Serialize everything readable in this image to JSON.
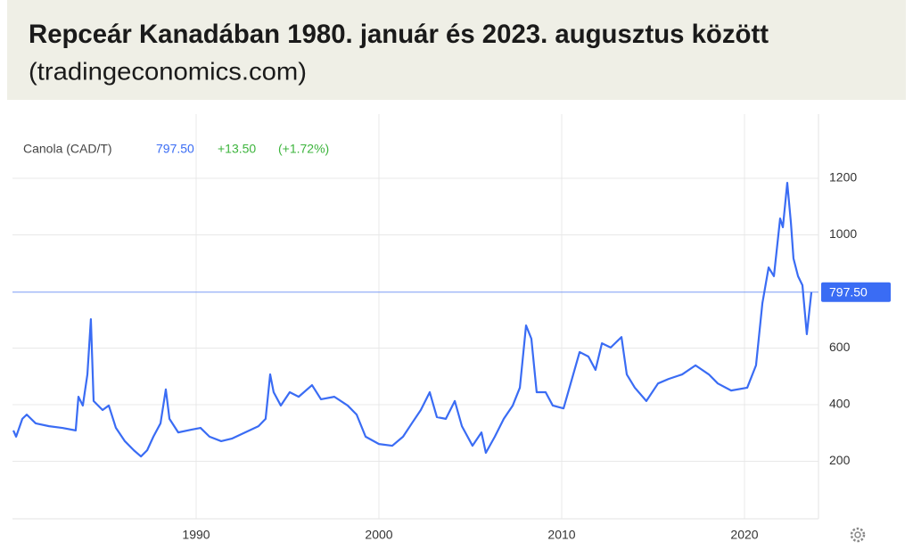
{
  "chart_data": {
    "type": "line",
    "title": "Repceár Kanadában 1980. január és 2023. augusztus között",
    "subtitle": "(tradingeconomics.com)",
    "series_label": "Canola (CAD/T)",
    "change": "+13.50",
    "change_pct": "(+1.72%)",
    "price_line": {
      "value": 797.5,
      "label": "797.50"
    },
    "xlim": [
      1980,
      2024
    ],
    "xticks": [
      1990,
      2000,
      2010,
      2020
    ],
    "ylim": [
      0,
      1400
    ],
    "yticks": [
      200,
      400,
      600,
      1000,
      1200
    ],
    "grid": true,
    "series": [
      {
        "name": "Canola",
        "color": "#3a6cf4",
        "x": [
          1980.0,
          1980.15,
          1980.49,
          1980.73,
          1981.22,
          1981.95,
          1982.68,
          1983.41,
          1983.56,
          1983.8,
          1984.05,
          1984.24,
          1984.39,
          1984.88,
          1985.22,
          1985.61,
          1986.1,
          1986.59,
          1986.98,
          1987.32,
          1987.66,
          1988.05,
          1988.34,
          1988.54,
          1989.02,
          1989.76,
          1990.24,
          1990.73,
          1991.37,
          1991.95,
          1992.68,
          1993.41,
          1993.8,
          1994.05,
          1994.24,
          1994.63,
          1995.12,
          1995.61,
          1996.34,
          1996.83,
          1997.56,
          1998.29,
          1998.78,
          1999.27,
          2000.0,
          2000.73,
          2001.32,
          2001.8,
          2002.29,
          2002.78,
          2003.17,
          2003.66,
          2004.15,
          2004.54,
          2005.12,
          2005.61,
          2005.85,
          2006.34,
          2006.83,
          2007.32,
          2007.71,
          2008.05,
          2008.34,
          2008.63,
          2009.12,
          2009.51,
          2010.1,
          2010.49,
          2010.98,
          2011.46,
          2011.85,
          2012.2,
          2012.68,
          2013.27,
          2013.56,
          2014.0,
          2014.63,
          2015.27,
          2015.85,
          2016.59,
          2017.32,
          2018.05,
          2018.54,
          2019.27,
          2020.15,
          2020.63,
          2020.98,
          2021.32,
          2021.61,
          2021.95,
          2022.1,
          2022.34,
          2022.54,
          2022.68,
          2022.93,
          2023.17,
          2023.41,
          2023.66
        ],
        "values": [
          309,
          287,
          350,
          365,
          334,
          324,
          318,
          309,
          428,
          397,
          507,
          702,
          413,
          381,
          397,
          318,
          271,
          239,
          217,
          239,
          287,
          334,
          454,
          350,
          302,
          312,
          318,
          287,
          271,
          280,
          302,
          324,
          350,
          507,
          444,
          397,
          444,
          428,
          469,
          419,
          428,
          397,
          365,
          287,
          261,
          255,
          287,
          334,
          381,
          444,
          356,
          350,
          413,
          324,
          255,
          302,
          230,
          287,
          350,
          397,
          460,
          680,
          633,
          444,
          444,
          397,
          387,
          475,
          586,
          570,
          523,
          617,
          602,
          639,
          507,
          460,
          413,
          475,
          491,
          507,
          539,
          507,
          475,
          450,
          460,
          539,
          759,
          885,
          854,
          1058,
          1027,
          1184,
          1043,
          917,
          854,
          822,
          649,
          797.5
        ]
      }
    ]
  }
}
